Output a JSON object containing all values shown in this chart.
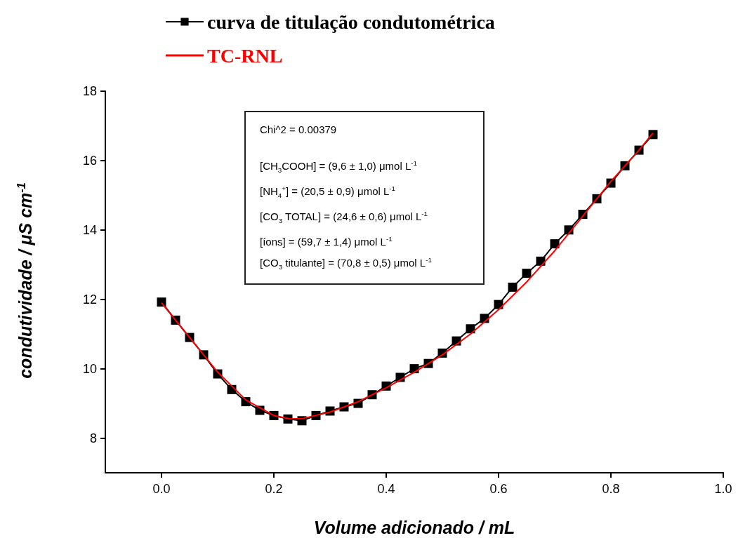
{
  "chart_data": {
    "type": "line",
    "xlabel": "Volume adicionado / mL",
    "ylabel": "condutividade / μS cm$^{-1}$",
    "annotations": [
      "Chi^2 = 0.00379",
      "[CH$_{3}$COOH] = (9,6 ± 1,0) μmol L$^{-1}$",
      "[NH$_{4}$$^{+}$] = (20,5 ± 0,9) μmol L$^{-1}$",
      "[CO$_{3}$ TOTAL] = (24,6 ± 0,6) μmol L$^{-1}$",
      "[íons] = (59,7 ± 1,4) μmol L$^{-1}$",
      "[CO$_{3}$ titulante] = (70,8 ± 0,5) μmol L$^{-1}$"
    ],
    "series": [
      {
        "name": "curva de titulação condutométrica",
        "type": "line",
        "marker": "square",
        "color": "#000000",
        "x": [
          0,
          0.025,
          0.05,
          0.075,
          0.1,
          0.125,
          0.15,
          0.175,
          0.2,
          0.225,
          0.25,
          0.275,
          0.3,
          0.325,
          0.35,
          0.375,
          0.4,
          0.425,
          0.45,
          0.475,
          0.5,
          0.525,
          0.55,
          0.575,
          0.6,
          0.625,
          0.65,
          0.675,
          0.7,
          0.725,
          0.75,
          0.775,
          0.8,
          0.825,
          0.85,
          0.875
        ],
        "values": [
          11.92,
          11.4,
          10.9,
          10.4,
          9.85,
          9.4,
          9.05,
          8.8,
          8.65,
          8.55,
          8.5,
          8.65,
          8.78,
          8.9,
          9.0,
          9.25,
          9.5,
          9.75,
          10.0,
          10.15,
          10.45,
          10.8,
          11.15,
          11.45,
          11.85,
          12.35,
          12.75,
          13.1,
          13.6,
          14.0,
          14.45,
          14.9,
          15.35,
          15.85,
          16.3,
          16.75
        ]
      },
      {
        "name": "TC-RNL",
        "type": "line",
        "marker": "none",
        "color": "#ff0000",
        "x": [
          0,
          0.05,
          0.1,
          0.15,
          0.2,
          0.23,
          0.25,
          0.3,
          0.35,
          0.4,
          0.45,
          0.5,
          0.55,
          0.6,
          0.65,
          0.7,
          0.75,
          0.8,
          0.85,
          0.875
        ],
        "values": [
          11.9,
          10.9,
          9.9,
          9.1,
          8.65,
          8.55,
          8.56,
          8.75,
          9.05,
          9.45,
          9.9,
          10.4,
          11.0,
          11.7,
          12.5,
          13.4,
          14.4,
          15.4,
          16.3,
          16.8
        ]
      }
    ],
    "xlim": [
      -0.1,
      1.0
    ],
    "xticks": [
      {
        "value": 0,
        "label": "0.0"
      },
      {
        "value": 0.2,
        "label": "0.2"
      },
      {
        "value": 0.4,
        "label": "0.4"
      },
      {
        "value": 0.6,
        "label": "0.6"
      },
      {
        "value": 0.8,
        "label": "0.8"
      },
      {
        "value": 1.0,
        "label": "1.0"
      }
    ],
    "ylim": [
      7,
      18
    ],
    "yticks": [
      8,
      10,
      12,
      14,
      16,
      18
    ],
    "legend": "top left",
    "grid": false,
    "line_style": "solid"
  }
}
